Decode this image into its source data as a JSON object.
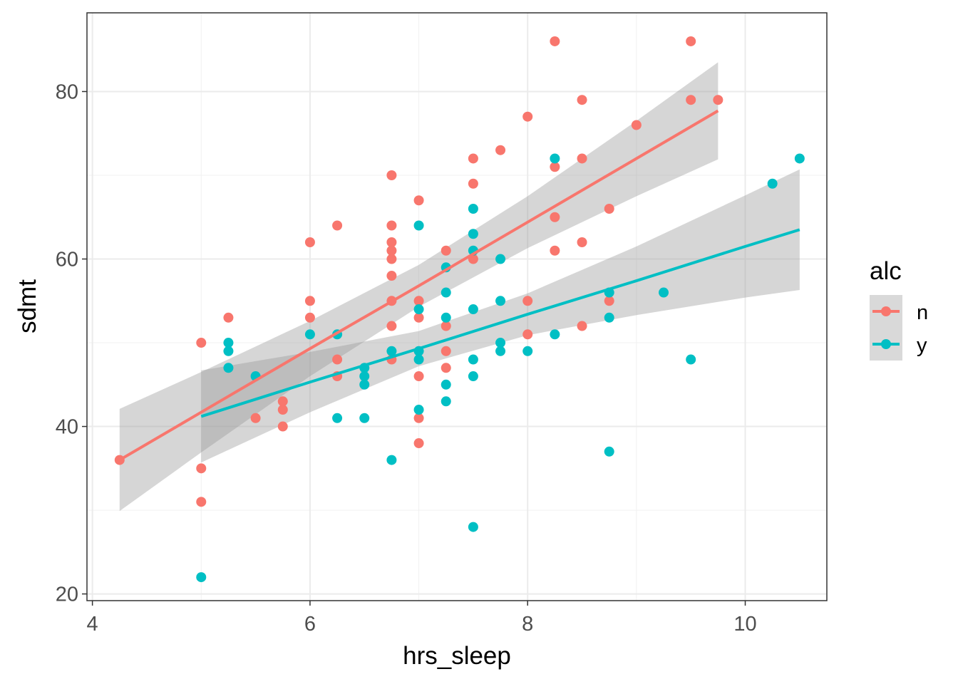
{
  "chart_data": {
    "type": "scatter",
    "title": "",
    "xlabel": "hrs_sleep",
    "ylabel": "sdmt",
    "xlim": [
      3.95,
      10.75
    ],
    "ylim": [
      19.2,
      89.4
    ],
    "xticks": [
      4,
      6,
      8,
      10
    ],
    "yticks": [
      20,
      40,
      60,
      80
    ],
    "grid": true,
    "legend": {
      "title": "alc",
      "position": "right"
    },
    "series": [
      {
        "name": "n",
        "color": "#F8766D",
        "points": [
          [
            4.25,
            36
          ],
          [
            5,
            50
          ],
          [
            5,
            35
          ],
          [
            5,
            31
          ],
          [
            5.25,
            53
          ],
          [
            5.5,
            41
          ],
          [
            5.75,
            43
          ],
          [
            5.75,
            42
          ],
          [
            5.75,
            40
          ],
          [
            6,
            62
          ],
          [
            6,
            55
          ],
          [
            6,
            53
          ],
          [
            6.25,
            64
          ],
          [
            6.25,
            48
          ],
          [
            6.25,
            46
          ],
          [
            6.75,
            70
          ],
          [
            6.75,
            64
          ],
          [
            6.75,
            62
          ],
          [
            6.75,
            61
          ],
          [
            6.75,
            60
          ],
          [
            6.75,
            58
          ],
          [
            6.75,
            55
          ],
          [
            6.75,
            52
          ],
          [
            6.75,
            48
          ],
          [
            7,
            67
          ],
          [
            7,
            55
          ],
          [
            7,
            53
          ],
          [
            7,
            46
          ],
          [
            7,
            41
          ],
          [
            7,
            38
          ],
          [
            7.25,
            61
          ],
          [
            7.25,
            52
          ],
          [
            7.25,
            49
          ],
          [
            7.25,
            47
          ],
          [
            7.5,
            72
          ],
          [
            7.5,
            69
          ],
          [
            7.5,
            60
          ],
          [
            7.75,
            73
          ],
          [
            8,
            77
          ],
          [
            8,
            55
          ],
          [
            8,
            51
          ],
          [
            8.25,
            86
          ],
          [
            8.25,
            71
          ],
          [
            8.25,
            65
          ],
          [
            8.25,
            61
          ],
          [
            8.5,
            79
          ],
          [
            8.5,
            72
          ],
          [
            8.5,
            62
          ],
          [
            8.5,
            52
          ],
          [
            8.75,
            66
          ],
          [
            8.75,
            55
          ],
          [
            9,
            76
          ],
          [
            9.5,
            86
          ],
          [
            9.5,
            79
          ],
          [
            9.75,
            79
          ]
        ],
        "fit": {
          "x": [
            4.25,
            5,
            6,
            7,
            8,
            9,
            9.75
          ],
          "y": [
            36,
            41.7,
            49.3,
            56.8,
            64.4,
            72.0,
            77.7
          ],
          "lower": [
            29.9,
            36.9,
            46.0,
            54.3,
            61.3,
            67.5,
            71.9
          ],
          "upper": [
            42.1,
            46.5,
            52.6,
            59.3,
            67.5,
            76.5,
            83.5
          ]
        }
      },
      {
        "name": "y",
        "color": "#00BFC4",
        "points": [
          [
            5,
            22
          ],
          [
            5.25,
            50
          ],
          [
            5.25,
            49
          ],
          [
            5.25,
            47
          ],
          [
            5.5,
            46
          ],
          [
            6,
            51
          ],
          [
            6.25,
            51
          ],
          [
            6.25,
            41
          ],
          [
            6.5,
            47
          ],
          [
            6.5,
            46
          ],
          [
            6.5,
            45
          ],
          [
            6.5,
            41
          ],
          [
            6.75,
            49
          ],
          [
            6.75,
            36
          ],
          [
            7,
            64
          ],
          [
            7,
            54
          ],
          [
            7,
            49
          ],
          [
            7,
            48
          ],
          [
            7,
            42
          ],
          [
            7.25,
            59
          ],
          [
            7.25,
            56
          ],
          [
            7.25,
            53
          ],
          [
            7.25,
            45
          ],
          [
            7.25,
            43
          ],
          [
            7.5,
            66
          ],
          [
            7.5,
            63
          ],
          [
            7.5,
            61
          ],
          [
            7.5,
            54
          ],
          [
            7.5,
            48
          ],
          [
            7.5,
            46
          ],
          [
            7.5,
            28
          ],
          [
            7.75,
            60
          ],
          [
            7.75,
            55
          ],
          [
            7.75,
            50
          ],
          [
            7.75,
            49
          ],
          [
            8,
            49
          ],
          [
            8.25,
            72
          ],
          [
            8.25,
            51
          ],
          [
            8.75,
            56
          ],
          [
            8.75,
            53
          ],
          [
            8.75,
            37
          ],
          [
            9.25,
            56
          ],
          [
            9.5,
            48
          ],
          [
            10.25,
            69
          ],
          [
            10.5,
            72
          ]
        ],
        "fit": {
          "x": [
            5,
            6,
            7,
            8,
            9,
            10,
            10.5
          ],
          "y": [
            41.2,
            45.3,
            49.3,
            53.4,
            57.4,
            61.5,
            63.5
          ],
          "lower": [
            35.7,
            41.7,
            47.2,
            50.9,
            53.3,
            55.4,
            56.3
          ],
          "upper": [
            46.7,
            48.9,
            51.4,
            55.9,
            61.5,
            67.6,
            70.7
          ]
        }
      }
    ]
  }
}
